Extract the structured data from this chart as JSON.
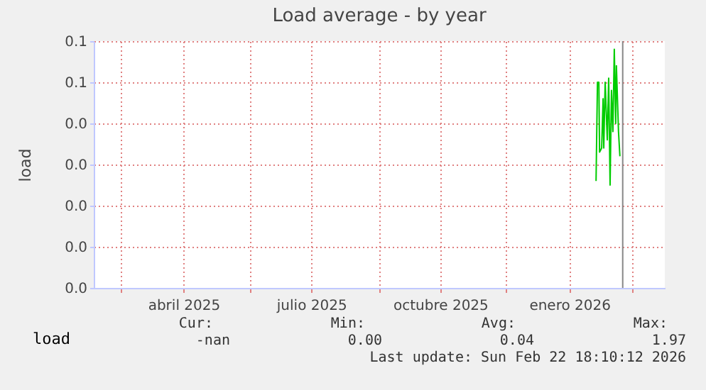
{
  "chart_data": {
    "type": "line",
    "title": "Load average - by year",
    "ylabel": "load",
    "x": [
      "2026-02-03",
      "2026-02-04",
      "2026-02-05",
      "2026-02-05T12:00",
      "2026-02-07",
      "2026-02-08",
      "2026-02-08T12:00",
      "2026-02-09T12:00",
      "2026-02-11",
      "2026-02-12",
      "2026-02-13",
      "2026-02-14",
      "2026-02-15",
      "2026-02-16",
      "2026-02-17",
      "2026-02-17T12:00",
      "2026-02-19",
      "2026-02-20"
    ],
    "series": [
      {
        "name": "load",
        "color": "#00cc00",
        "values": [
          0.026,
          0.05,
          0.05,
          0.033,
          0.034,
          0.046,
          0.034,
          0.05,
          0.036,
          0.051,
          0.025,
          0.048,
          0.038,
          0.058,
          0.04,
          0.054,
          0.038,
          0.032
        ]
      }
    ],
    "xlim": [
      "2025-02-10",
      "2026-03-24"
    ],
    "xticks": [
      {
        "value": "2025-03-01",
        "label": null
      },
      {
        "value": "2025-04-15",
        "label": "abril 2025"
      },
      {
        "value": "2025-06-01",
        "label": null
      },
      {
        "value": "2025-07-15",
        "label": "julio 2025"
      },
      {
        "value": "2025-09-01",
        "label": null
      },
      {
        "value": "2025-10-15",
        "label": "octubre 2025"
      },
      {
        "value": "2025-12-01",
        "label": null
      },
      {
        "value": "2026-01-15",
        "label": "enero 2026"
      },
      {
        "value": "2026-03-01",
        "label": null
      }
    ],
    "ylim": [
      0,
      0.06
    ],
    "yticks": [
      {
        "value": 0,
        "label": "0.0"
      },
      {
        "value": 0.01,
        "label": "0.0"
      },
      {
        "value": 0.02,
        "label": "0.0"
      },
      {
        "value": 0.03,
        "label": "0.0"
      },
      {
        "value": 0.04,
        "label": "0.0"
      },
      {
        "value": 0.05,
        "label": "0.1"
      },
      {
        "value": 0.06,
        "label": "0.1"
      }
    ],
    "ref_lines": [
      {
        "axis": "x",
        "value": "2026-02-22",
        "color": "#888888"
      }
    ],
    "grid": true,
    "legend": "bottom",
    "marker": "none",
    "line_style": "solid",
    "annotations": [
      "Cur:",
      "Min:",
      "Avg:",
      "Max:",
      "-nan",
      "0.00",
      "0.04",
      "1.97",
      "Last update: Sun Feb 22 18:10:12 2026"
    ]
  }
}
